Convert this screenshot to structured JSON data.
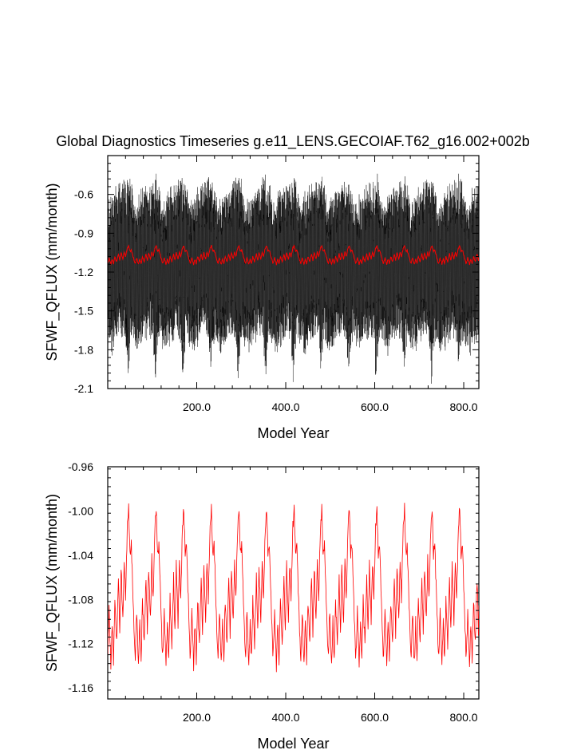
{
  "title": "Global Diagnostics Timeseries g.e11_LENS.GECOIAF.T62_g16.002+002b",
  "chart_data": [
    {
      "type": "line",
      "xlabel": "Model Year",
      "ylabel": "SFWF_QFLUX (mm/month)",
      "xlim": [
        0,
        834
      ],
      "ylim": [
        -2.1,
        -0.3
      ],
      "xticks": [
        200,
        400,
        600,
        800
      ],
      "xtick_labels": [
        "200.0",
        "400.0",
        "600.0",
        "800.0"
      ],
      "yticks": [
        -2.1,
        -1.8,
        -1.5,
        -1.2,
        -0.9,
        -0.6
      ],
      "ytick_labels": [
        "-2.1",
        "-1.8",
        "-1.5",
        "-1.2",
        "-0.9",
        "-0.6"
      ],
      "series": [
        {
          "color": "#000000",
          "style": "monthly values",
          "cycle_years": 62,
          "envelope": {
            "year_in_cycle": [
              0,
              10,
              20,
              30,
              40,
              45,
              50,
              55,
              61
            ],
            "max": [
              -0.66,
              -0.56,
              -0.52,
              -0.5,
              -0.46,
              -0.42,
              -0.44,
              -0.52,
              -0.66
            ],
            "min": [
              -1.8,
              -1.85,
              -1.76,
              -1.7,
              -1.75,
              -2.1,
              -1.8,
              -1.75,
              -1.8
            ]
          }
        },
        {
          "color": "#ff0000",
          "style": "annual mean",
          "cycle_years": 62,
          "mean_profile": {
            "year_in_cycle": [
              0,
              3,
              7,
              10,
              13,
              16,
              20,
              24,
              27,
              30,
              34,
              37,
              40,
              44,
              47,
              50,
              53,
              57,
              61
            ],
            "value": [
              -1.13,
              -1.09,
              -1.14,
              -1.1,
              -1.135,
              -1.08,
              -1.12,
              -1.06,
              -1.11,
              -1.05,
              -1.1,
              -1.045,
              -1.08,
              -1.015,
              -0.997,
              -1.04,
              -1.03,
              -1.08,
              -1.13
            ]
          }
        }
      ]
    },
    {
      "type": "line",
      "xlabel": "Model Year",
      "ylabel": "SFWF_QFLUX (mm/month)",
      "xlim": [
        0,
        834
      ],
      "ylim": [
        -1.17,
        -0.96
      ],
      "xticks": [
        200,
        400,
        600,
        800
      ],
      "xtick_labels": [
        "200.0",
        "400.0",
        "600.0",
        "800.0"
      ],
      "yticks": [
        -1.16,
        -1.12,
        -1.08,
        -1.04,
        -1.0,
        -0.96
      ],
      "ytick_labels": [
        "-1.16",
        "-1.12",
        "-1.08",
        "-1.04",
        "-1.00",
        "-0.96"
      ],
      "series": [
        {
          "color": "#ff0000",
          "style": "annual mean",
          "cycle_years": 62,
          "mean_profile": {
            "year_in_cycle": [
              0,
              3,
              7,
              10,
              13,
              16,
              20,
              24,
              27,
              30,
              34,
              37,
              40,
              44,
              47,
              50,
              53,
              57,
              61
            ],
            "value": [
              -1.13,
              -1.09,
              -1.14,
              -1.1,
              -1.135,
              -1.08,
              -1.12,
              -1.06,
              -1.11,
              -1.05,
              -1.1,
              -1.045,
              -1.08,
              -1.015,
              -0.997,
              -1.04,
              -1.03,
              -1.08,
              -1.13
            ]
          }
        }
      ]
    }
  ]
}
